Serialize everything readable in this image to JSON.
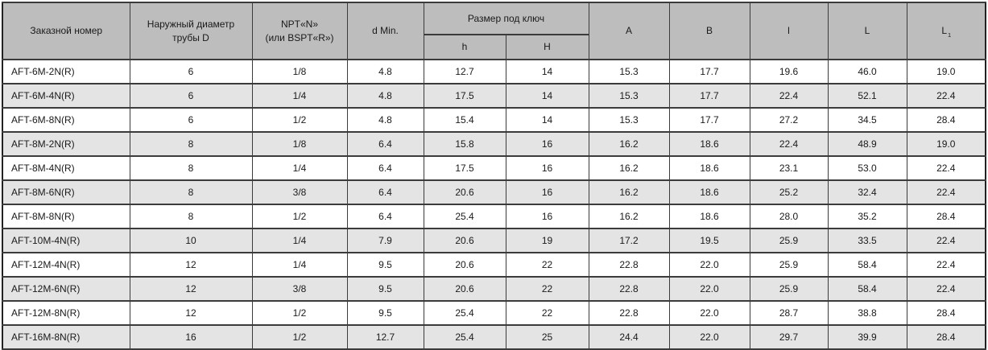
{
  "colors": {
    "header_bg": "#bdbdbd",
    "row_bg": "#ffffff",
    "row_alt_bg": "#e4e4e4",
    "border": "#3b3b3b",
    "text": "#1a1a1a"
  },
  "table": {
    "headers": {
      "order": "Заказной номер",
      "outer_diameter": "Наружный диаметр\nтрубы D",
      "npt": "NPT«N»\n(или BSPT«R»)",
      "d_min": "d Min.",
      "wrench_size": "Размер под ключ",
      "wrench_h": "h",
      "wrench_H": "H",
      "col_a": "A",
      "col_b": "B",
      "col_l_small": "l",
      "col_L": "L",
      "col_L1_base": "L",
      "col_L1_sub": "1"
    },
    "rows": [
      [
        "AFT-6M-2N(R)",
        "6",
        "1/8",
        "4.8",
        "12.7",
        "14",
        "15.3",
        "17.7",
        "19.6",
        "46.0",
        "19.0"
      ],
      [
        "AFT-6M-4N(R)",
        "6",
        "1/4",
        "4.8",
        "17.5",
        "14",
        "15.3",
        "17.7",
        "22.4",
        "52.1",
        "22.4"
      ],
      [
        "AFT-6M-8N(R)",
        "6",
        "1/2",
        "4.8",
        "15.4",
        "14",
        "15.3",
        "17.7",
        "27.2",
        "34.5",
        "28.4"
      ],
      [
        "AFT-8M-2N(R)",
        "8",
        "1/8",
        "6.4",
        "15.8",
        "16",
        "16.2",
        "18.6",
        "22.4",
        "48.9",
        "19.0"
      ],
      [
        "AFT-8M-4N(R)",
        "8",
        "1/4",
        "6.4",
        "17.5",
        "16",
        "16.2",
        "18.6",
        "23.1",
        "53.0",
        "22.4"
      ],
      [
        "AFT-8M-6N(R)",
        "8",
        "3/8",
        "6.4",
        "20.6",
        "16",
        "16.2",
        "18.6",
        "25.2",
        "32.4",
        "22.4"
      ],
      [
        "AFT-8M-8N(R)",
        "8",
        "1/2",
        "6.4",
        "25.4",
        "16",
        "16.2",
        "18.6",
        "28.0",
        "35.2",
        "28.4"
      ],
      [
        "AFT-10M-4N(R)",
        "10",
        "1/4",
        "7.9",
        "20.6",
        "19",
        "17.2",
        "19.5",
        "25.9",
        "33.5",
        "22.4"
      ],
      [
        "AFT-12M-4N(R)",
        "12",
        "1/4",
        "9.5",
        "20.6",
        "22",
        "22.8",
        "22.0",
        "25.9",
        "58.4",
        "22.4"
      ],
      [
        "AFT-12M-6N(R)",
        "12",
        "3/8",
        "9.5",
        "20.6",
        "22",
        "22.8",
        "22.0",
        "25.9",
        "58.4",
        "22.4"
      ],
      [
        "AFT-12M-8N(R)",
        "12",
        "1/2",
        "9.5",
        "25.4",
        "22",
        "22.8",
        "22.0",
        "28.7",
        "38.8",
        "28.4"
      ],
      [
        "AFT-16M-8N(R)",
        "16",
        "1/2",
        "12.7",
        "25.4",
        "25",
        "24.4",
        "22.0",
        "29.7",
        "39.9",
        "28.4"
      ]
    ]
  }
}
